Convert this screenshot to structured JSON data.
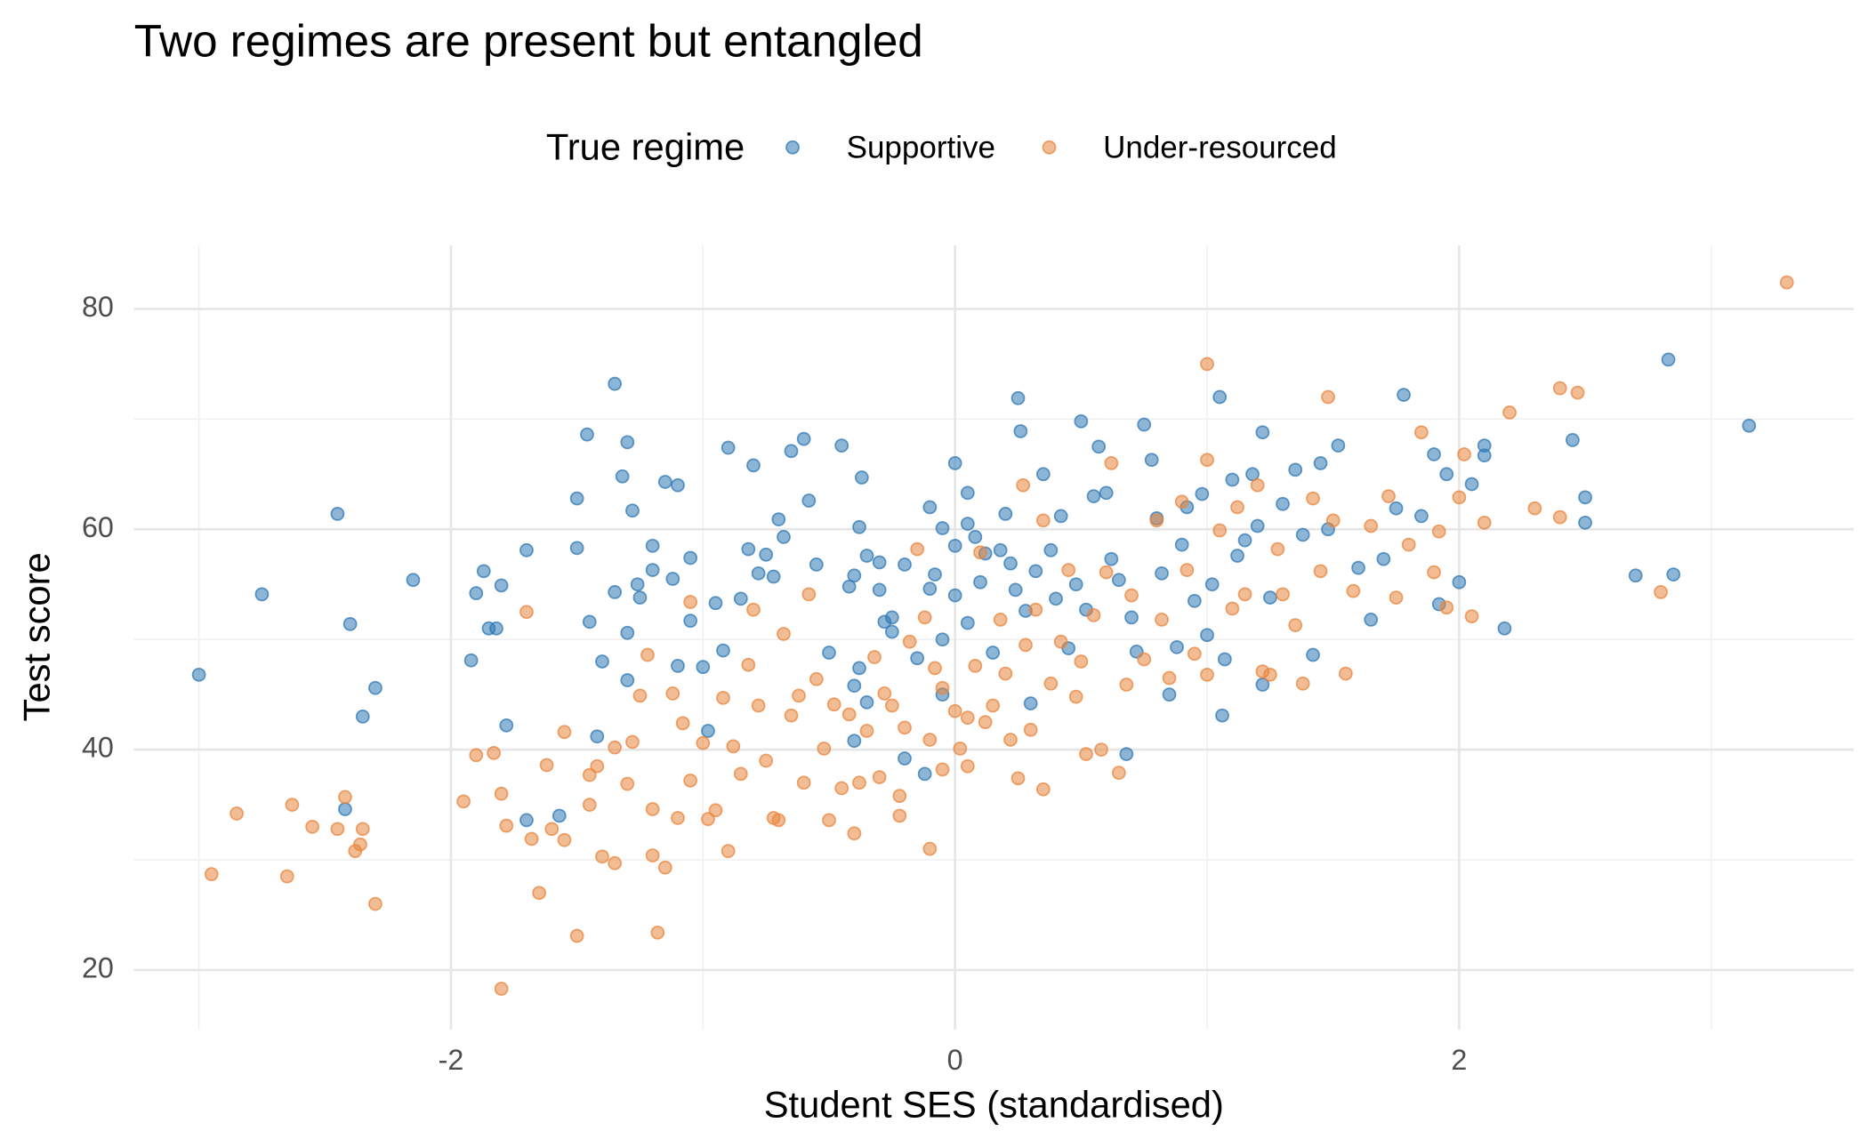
{
  "chart_data": {
    "type": "scatter",
    "title": "Two regimes are present but entangled",
    "x_label": "Student SES (standardised)",
    "y_label": "Test score",
    "legend_title": "True regime",
    "legend_position": "top",
    "grid": true,
    "xlim": [
      -3.257,
      3.565
    ],
    "ylim": [
      14.6,
      85.75
    ],
    "xticks": [
      -2,
      0,
      2
    ],
    "yticks": [
      20,
      40,
      60,
      80
    ],
    "x_minor_grid": [
      -3,
      -1,
      1,
      3
    ],
    "y_minor_grid": [
      30,
      50,
      70
    ],
    "series": [
      {
        "name": "Supportive",
        "color": "#2f78b4",
        "x": [
          -3.0,
          -2.75,
          -2.45,
          -2.42,
          -2.4,
          -2.35,
          -2.3,
          -2.15,
          -1.92,
          -1.9,
          -1.87,
          -1.85,
          -1.8,
          -1.82,
          -1.78,
          -1.7,
          -1.7,
          -1.57,
          -1.5,
          -1.5,
          -1.46,
          -1.45,
          -1.42,
          -1.4,
          -1.35,
          -1.3,
          -1.35,
          -1.32,
          -1.3,
          -1.28,
          -1.26,
          -1.25,
          -1.3,
          -1.2,
          -1.2,
          -1.1,
          -1.05,
          -1.12,
          -1.15,
          -1.1,
          -1.05,
          -1.0,
          -0.98,
          -0.95,
          -0.92,
          -0.9,
          -0.85,
          -0.82,
          -0.8,
          -0.78,
          -0.75,
          -0.72,
          -0.7,
          -0.68,
          -0.65,
          -0.6,
          -0.58,
          -0.55,
          -0.5,
          -0.45,
          -0.42,
          -0.4,
          -0.38,
          -0.35,
          -0.3,
          -0.28,
          -0.25,
          -0.4,
          -0.4,
          -0.38,
          -0.37,
          -0.35,
          -0.3,
          -0.25,
          -0.2,
          -0.2,
          -0.15,
          -0.12,
          -0.1,
          -0.08,
          -0.05,
          -0.05,
          0.0,
          0.0,
          0.05,
          0.05,
          0.05,
          -0.05,
          -0.1,
          0.0,
          0.08,
          0.1,
          0.12,
          0.15,
          0.18,
          0.2,
          0.22,
          0.24,
          0.25,
          0.26,
          0.28,
          0.3,
          0.32,
          0.35,
          0.38,
          0.4,
          0.42,
          0.45,
          0.48,
          0.5,
          0.52,
          0.55,
          0.57,
          0.6,
          0.62,
          0.65,
          0.68,
          0.7,
          0.72,
          0.75,
          0.78,
          0.8,
          0.82,
          0.85,
          0.88,
          0.9,
          0.92,
          0.95,
          0.98,
          1.0,
          1.02,
          1.05,
          1.06,
          1.07,
          1.1,
          1.12,
          1.15,
          1.18,
          1.2,
          1.22,
          1.22,
          1.25,
          1.3,
          1.35,
          1.38,
          1.42,
          1.45,
          1.48,
          1.52,
          1.6,
          1.65,
          1.7,
          1.75,
          1.78,
          1.85,
          1.9,
          1.92,
          1.95,
          2.0,
          2.05,
          2.1,
          2.1,
          2.18,
          2.45,
          2.5,
          2.5,
          2.7,
          2.83,
          2.85,
          3.15
        ],
        "values": [
          46.8,
          54.1,
          61.4,
          34.6,
          51.4,
          43.0,
          45.6,
          55.4,
          48.1,
          54.2,
          56.2,
          51.0,
          54.9,
          51.0,
          42.2,
          33.6,
          58.1,
          34.0,
          62.8,
          58.3,
          68.6,
          51.6,
          41.2,
          48.0,
          54.3,
          50.6,
          73.2,
          64.8,
          67.9,
          61.7,
          55.0,
          53.8,
          46.3,
          58.5,
          56.3,
          47.6,
          51.7,
          55.5,
          64.3,
          64.0,
          57.4,
          47.5,
          41.7,
          53.3,
          49.0,
          67.4,
          53.7,
          58.2,
          65.8,
          56.0,
          57.7,
          55.7,
          60.9,
          59.3,
          67.1,
          68.2,
          62.6,
          56.8,
          48.8,
          67.6,
          54.8,
          55.8,
          47.4,
          44.3,
          57.0,
          51.6,
          50.7,
          45.8,
          40.8,
          60.2,
          64.7,
          57.6,
          54.5,
          52.0,
          56.8,
          39.2,
          48.3,
          37.8,
          54.6,
          55.9,
          50.0,
          45.0,
          58.5,
          54.0,
          63.3,
          60.5,
          51.5,
          60.1,
          62.0,
          66.0,
          59.3,
          55.2,
          57.8,
          48.8,
          58.1,
          61.4,
          56.9,
          54.5,
          71.9,
          68.9,
          52.6,
          44.2,
          56.2,
          65.0,
          58.1,
          53.7,
          61.2,
          49.2,
          55.0,
          69.8,
          52.7,
          63.0,
          67.5,
          63.3,
          57.3,
          55.4,
          39.6,
          52.0,
          48.9,
          69.5,
          66.3,
          61.0,
          56.0,
          45.0,
          49.3,
          58.6,
          62.0,
          53.5,
          63.2,
          50.4,
          55.0,
          72.0,
          43.1,
          48.2,
          64.5,
          57.6,
          59.0,
          65.0,
          60.3,
          68.8,
          45.9,
          53.8,
          62.3,
          65.4,
          59.5,
          48.6,
          66.0,
          60.0,
          67.6,
          56.5,
          51.8,
          57.3,
          61.9,
          72.2,
          61.2,
          66.8,
          53.2,
          65.0,
          55.2,
          64.1,
          66.7,
          67.6,
          51.0,
          68.1,
          62.9,
          60.6,
          55.8,
          75.4,
          55.9,
          69.4
        ]
      },
      {
        "name": "Under-resourced",
        "color": "#e8853d",
        "x": [
          -2.95,
          -2.85,
          -2.65,
          -2.63,
          -2.55,
          -2.45,
          -2.42,
          -2.38,
          -2.36,
          -2.35,
          -2.3,
          -1.95,
          -1.9,
          -1.83,
          -1.8,
          -1.78,
          -1.8,
          -1.7,
          -1.68,
          -1.65,
          -1.62,
          -1.6,
          -1.55,
          -1.55,
          -1.5,
          -1.45,
          -1.45,
          -1.42,
          -1.4,
          -1.35,
          -1.35,
          -1.3,
          -1.28,
          -1.25,
          -1.22,
          -1.2,
          -1.2,
          -1.18,
          -1.15,
          -1.12,
          -1.1,
          -1.08,
          -1.05,
          -1.05,
          -1.0,
          -0.98,
          -0.95,
          -0.92,
          -0.9,
          -0.88,
          -0.85,
          -0.82,
          -0.8,
          -0.78,
          -0.75,
          -0.72,
          -0.7,
          -0.68,
          -0.65,
          -0.62,
          -0.6,
          -0.58,
          -0.55,
          -0.52,
          -0.5,
          -0.48,
          -0.45,
          -0.42,
          -0.4,
          -0.38,
          -0.35,
          -0.32,
          -0.3,
          -0.28,
          -0.25,
          -0.22,
          -0.22,
          -0.2,
          -0.18,
          -0.15,
          -0.12,
          -0.1,
          -0.08,
          -0.05,
          -0.05,
          -0.1,
          0.0,
          0.02,
          0.05,
          0.05,
          0.08,
          0.1,
          0.12,
          0.15,
          0.18,
          0.2,
          0.22,
          0.25,
          0.27,
          0.28,
          0.3,
          0.32,
          0.35,
          0.35,
          0.38,
          0.42,
          0.45,
          0.48,
          0.5,
          0.52,
          0.55,
          0.58,
          0.6,
          0.62,
          0.65,
          0.68,
          0.7,
          0.75,
          0.8,
          0.82,
          0.85,
          0.9,
          0.92,
          0.95,
          1.0,
          1.0,
          1.0,
          1.05,
          1.1,
          1.12,
          1.15,
          1.2,
          1.22,
          1.25,
          1.28,
          1.3,
          1.35,
          1.38,
          1.42,
          1.45,
          1.48,
          1.5,
          1.55,
          1.58,
          1.65,
          1.72,
          1.75,
          1.8,
          1.85,
          1.9,
          1.92,
          1.95,
          2.0,
          2.02,
          2.05,
          2.1,
          2.2,
          2.3,
          2.4,
          2.4,
          2.47,
          2.8,
          3.3
        ],
        "values": [
          28.7,
          34.2,
          28.5,
          35.0,
          33.0,
          32.8,
          35.7,
          30.8,
          31.4,
          32.8,
          26.0,
          35.3,
          39.5,
          39.7,
          36.0,
          33.1,
          18.3,
          52.5,
          31.9,
          27.0,
          38.6,
          32.8,
          41.6,
          31.8,
          23.1,
          35.0,
          37.7,
          38.5,
          30.3,
          29.7,
          40.2,
          36.9,
          40.7,
          44.9,
          48.6,
          30.4,
          34.6,
          23.4,
          29.3,
          45.1,
          33.8,
          42.4,
          37.2,
          53.4,
          40.6,
          33.7,
          34.5,
          44.7,
          30.8,
          40.3,
          37.8,
          47.7,
          52.7,
          44.0,
          39.0,
          33.8,
          33.6,
          50.5,
          43.1,
          44.9,
          37.0,
          54.1,
          46.4,
          40.1,
          33.6,
          44.1,
          36.5,
          43.2,
          32.4,
          37.0,
          41.7,
          48.4,
          37.5,
          45.1,
          44.0,
          34.0,
          35.8,
          42.0,
          49.8,
          58.2,
          52.0,
          40.9,
          47.4,
          38.2,
          45.6,
          31.0,
          43.5,
          40.1,
          38.5,
          42.9,
          47.6,
          57.9,
          42.5,
          44.0,
          51.8,
          46.9,
          40.9,
          37.4,
          64.0,
          49.5,
          41.8,
          52.7,
          36.4,
          60.8,
          46.0,
          49.8,
          56.3,
          44.8,
          48.0,
          39.6,
          52.2,
          40.0,
          56.1,
          66.0,
          37.9,
          45.9,
          54.0,
          48.2,
          60.8,
          51.8,
          46.5,
          62.5,
          56.3,
          48.7,
          75.0,
          46.8,
          66.3,
          59.9,
          52.8,
          62.0,
          54.1,
          64.0,
          47.1,
          46.8,
          58.2,
          54.1,
          51.3,
          46.0,
          62.8,
          56.2,
          72.0,
          60.8,
          46.9,
          54.4,
          60.3,
          63.0,
          53.8,
          58.6,
          68.8,
          56.1,
          59.8,
          52.9,
          62.9,
          66.8,
          52.1,
          60.6,
          70.6,
          61.9,
          61.1,
          72.8,
          72.4,
          54.3,
          82.4
        ]
      }
    ]
  }
}
